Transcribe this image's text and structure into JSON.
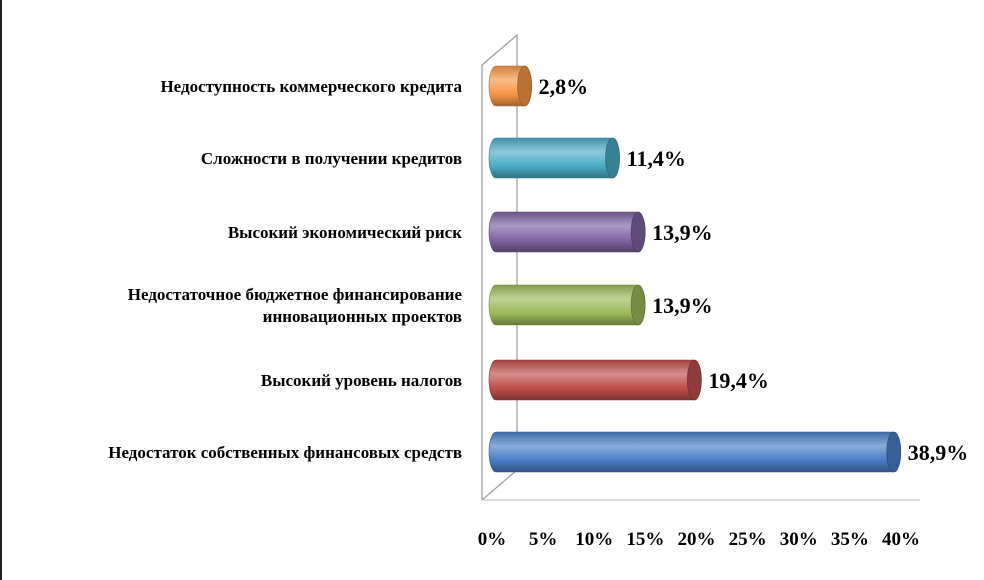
{
  "chart_data": {
    "type": "bar",
    "orientation": "horizontal",
    "style": "3d-cylinder",
    "categories": [
      "Недостаток собственных финансовых средств",
      "Высокий уровень налогов",
      "Недостаточное бюджетное финансирование инновационных проектов",
      "Высокий экономический риск",
      "Сложности в получении кредитов",
      "Недоступность коммерческого кредита"
    ],
    "category_lines": [
      [
        "Недостаток собственных финансовых средств"
      ],
      [
        "Высокий уровень налогов"
      ],
      [
        "Недостаточное бюджетное финансирование",
        "инновационных проектов"
      ],
      [
        "Высокий экономический риск"
      ],
      [
        "Сложности в  получении кредитов"
      ],
      [
        "Недоступность коммерческого кредита"
      ]
    ],
    "values": [
      38.9,
      19.4,
      13.9,
      13.9,
      11.4,
      2.8
    ],
    "data_labels": [
      "38,9%",
      "19,4%",
      "13,9%",
      "13,9%",
      "11,4%",
      "2,8%"
    ],
    "colors": [
      "#4a7ec8",
      "#c0504d",
      "#9bbb59",
      "#8064a2",
      "#4bacc6",
      "#f79646"
    ],
    "xlim": [
      0,
      40
    ],
    "x_ticks": [
      "0%",
      "5%",
      "10%",
      "15%",
      "20%",
      "25%",
      "30%",
      "35%",
      "40%"
    ],
    "grid": false,
    "legend": "none"
  }
}
